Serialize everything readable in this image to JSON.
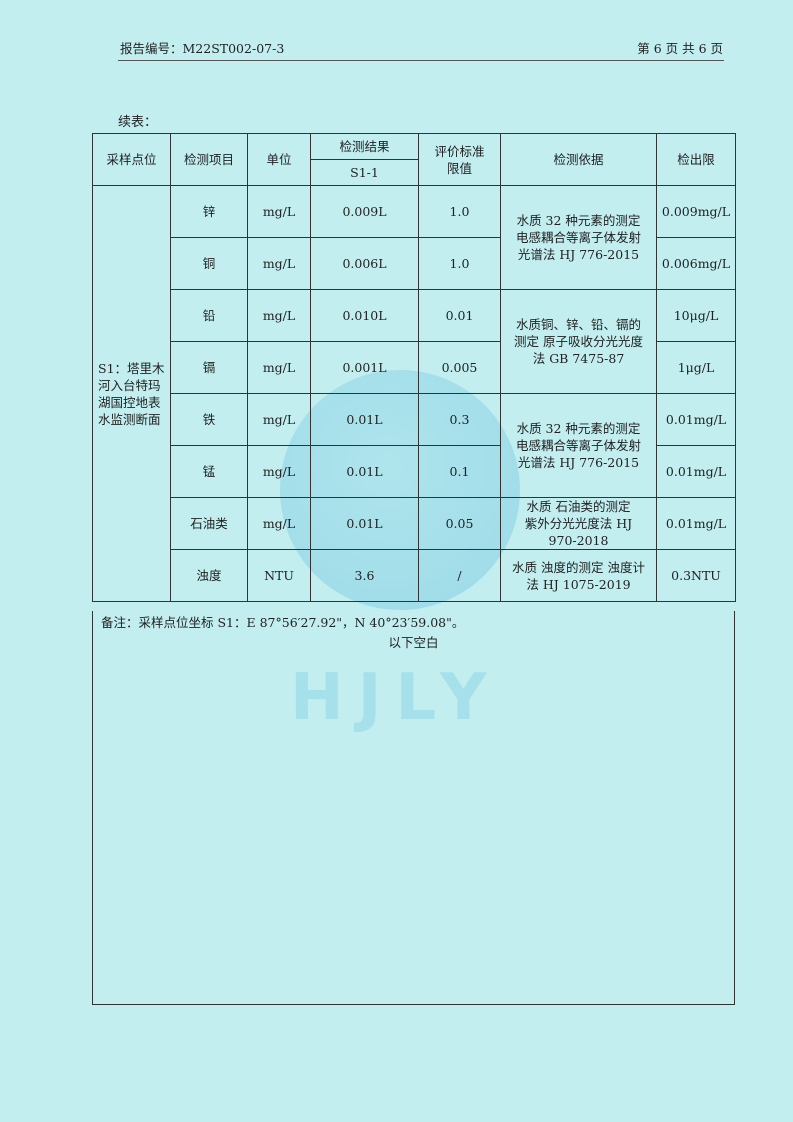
{
  "header": {
    "report_no": "报告编号：M22ST002-07-3",
    "page": "第 6 页 共 6 页"
  },
  "continued": "续表：",
  "watermark": {
    "logo_text": "HJLY"
  },
  "table": {
    "headers": {
      "site": "采样点位",
      "item": "检测项目",
      "unit": "单位",
      "result": "检测结果",
      "result_sub": "S1-1",
      "limit": "评价标准限值",
      "method": "检测依据",
      "detection_limit": "检出限"
    },
    "site": "S1：塔里木河入台特玛湖国控地表水监测断面",
    "rows": [
      {
        "item": "锌",
        "unit": "mg/L",
        "result": "0.009L",
        "limit": "1.0",
        "dl": "0.009mg/L"
      },
      {
        "item": "铜",
        "unit": "mg/L",
        "result": "0.006L",
        "limit": "1.0",
        "dl": "0.006mg/L"
      },
      {
        "item": "铅",
        "unit": "mg/L",
        "result": "0.010L",
        "limit": "0.01",
        "dl": "10μg/L"
      },
      {
        "item": "镉",
        "unit": "mg/L",
        "result": "0.001L",
        "limit": "0.005",
        "dl": "1μg/L"
      },
      {
        "item": "铁",
        "unit": "mg/L",
        "result": "0.01L",
        "limit": "0.3",
        "dl": "0.01mg/L"
      },
      {
        "item": "锰",
        "unit": "mg/L",
        "result": "0.01L",
        "limit": "0.1",
        "dl": "0.01mg/L"
      },
      {
        "item": "石油类",
        "unit": "mg/L",
        "result": "0.01L",
        "limit": "0.05",
        "dl": "0.01mg/L"
      },
      {
        "item": "浊度",
        "unit": "NTU",
        "result": "3.6",
        "limit": "/",
        "dl": "0.3NTU"
      }
    ],
    "methods": [
      "水质 32 种元素的测定 电感耦合等离子体发射光谱法 HJ 776-2015",
      "水质铜、锌、铅、镉的测定 原子吸收分光光度法 GB 7475-87",
      "水质 32 种元素的测定 电感耦合等离子体发射光谱法 HJ 776-2015",
      "水质 石油类的测定 紫外分光光度法 HJ 970-2018",
      "水质 浊度的测定 浊度计法 HJ 1075-2019"
    ]
  },
  "note": {
    "text": "备注：采样点位坐标 S1：E 87°56′27.92\"，N 40°23′59.08\"。",
    "blank": "以下空白"
  }
}
